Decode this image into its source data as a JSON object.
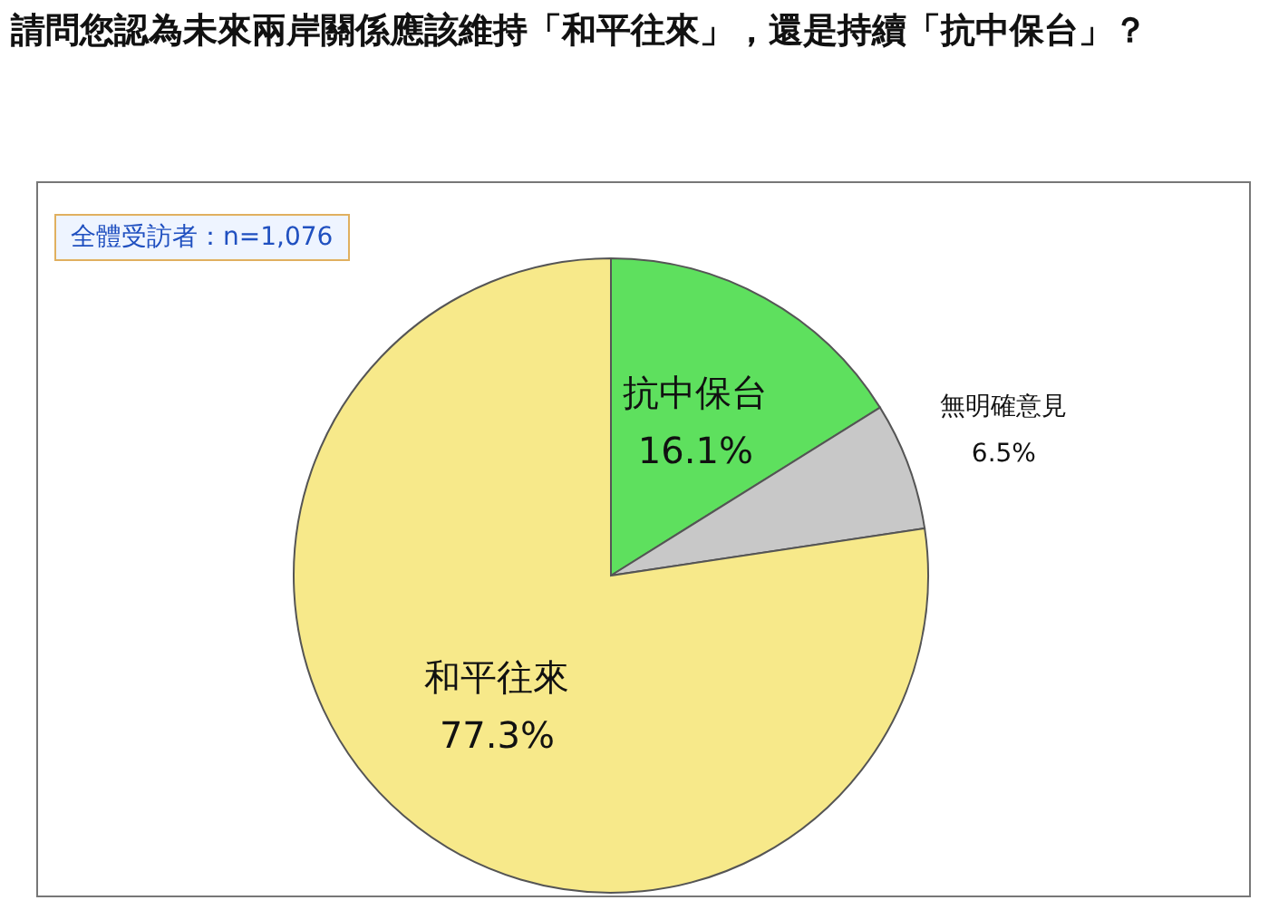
{
  "chart_data": {
    "type": "pie",
    "title": "請問您認為未來兩岸關係應該維持「和平往來」，還是持續「抗中保台」？",
    "categories": [
      "抗中保台",
      "無明確意見",
      "和平往來"
    ],
    "values": [
      16.1,
      6.5,
      77.3
    ],
    "colors": [
      "#5ee05e",
      "#c8c8c8",
      "#f7e98a"
    ],
    "value_labels": [
      "16.1%",
      "6.5%",
      "77.3%"
    ],
    "annotations": [
      "全體受訪者：n=1,076"
    ],
    "legend": false
  }
}
